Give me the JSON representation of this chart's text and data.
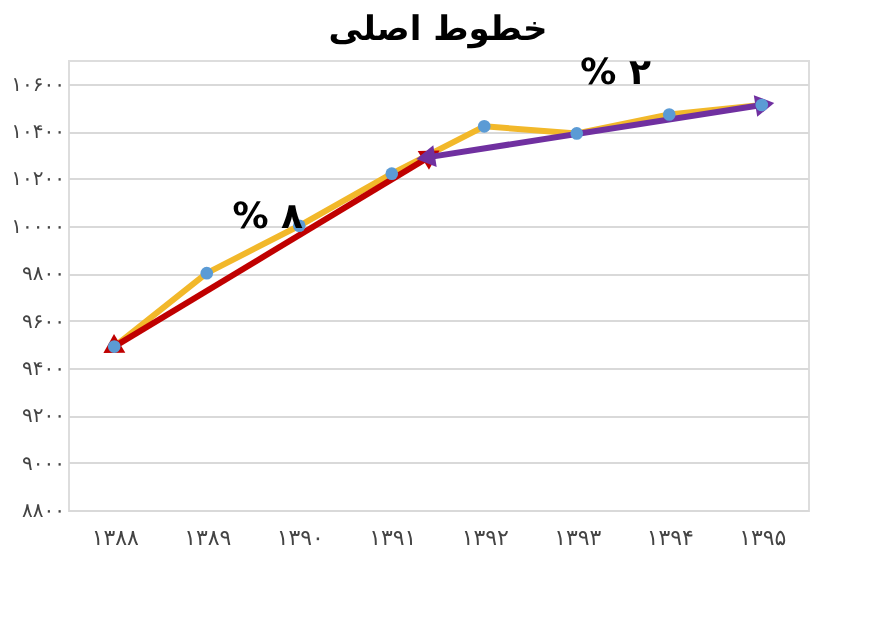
{
  "chart_data": {
    "type": "line",
    "title": "خطوط اصلی",
    "x": [
      1388,
      1389,
      1390,
      1391,
      1392,
      1393,
      1394,
      1395
    ],
    "series": [
      {
        "color": "#f2b82a",
        "marker": "none",
        "values": [
          9490,
          9800,
          10000,
          10220,
          10420,
          10390,
          10470,
          10510
        ]
      },
      {
        "type": "scatter",
        "color": "#5b9bd5",
        "marker": "circle",
        "values": [
          9490,
          9800,
          10000,
          10220,
          10420,
          10390,
          10470,
          10510
        ]
      },
      {
        "type": "line",
        "color": "#c00000",
        "marker": "triangle",
        "x": [
          1388,
          1391.4
        ],
        "values": [
          9490,
          10290
        ]
      },
      {
        "type": "line",
        "color": "#7030a0",
        "marker": "triangle",
        "x": [
          1391.4,
          1395
        ],
        "values": [
          10290,
          10510
        ]
      }
    ],
    "xlim": [
      1387.5,
      1395.5
    ],
    "xticks": [
      {
        "value": 1388,
        "label": "۱۳۸۸"
      },
      {
        "value": 1389,
        "label": "۱۳۸۹"
      },
      {
        "value": 1390,
        "label": "۱۳۹۰"
      },
      {
        "value": 1391,
        "label": "۱۳۹۱"
      },
      {
        "value": 1392,
        "label": "۱۳۹۲"
      },
      {
        "value": 1393,
        "label": "۱۳۹۳"
      },
      {
        "value": 1394,
        "label": "۱۳۹۴"
      },
      {
        "value": 1395,
        "label": "۱۳۹۵"
      }
    ],
    "ylim": [
      8800,
      10700
    ],
    "yticks": [
      {
        "value": 8800,
        "label": "۸۸۰۰"
      },
      {
        "value": 9000,
        "label": "۹۰۰۰"
      },
      {
        "value": 9200,
        "label": "۹۲۰۰"
      },
      {
        "value": 9400,
        "label": "۹۴۰۰"
      },
      {
        "value": 9600,
        "label": "۹۶۰۰"
      },
      {
        "value": 9800,
        "label": "۹۸۰۰"
      },
      {
        "value": 10000,
        "label": "۱۰۰۰۰"
      },
      {
        "value": 10200,
        "label": "۱۰۲۰۰"
      },
      {
        "value": 10400,
        "label": "۱۰۴۰۰"
      },
      {
        "value": 10600,
        "label": "۱۰۶۰۰"
      }
    ],
    "grid": "y",
    "annotations": [
      "% ۸",
      "% ۲"
    ]
  }
}
